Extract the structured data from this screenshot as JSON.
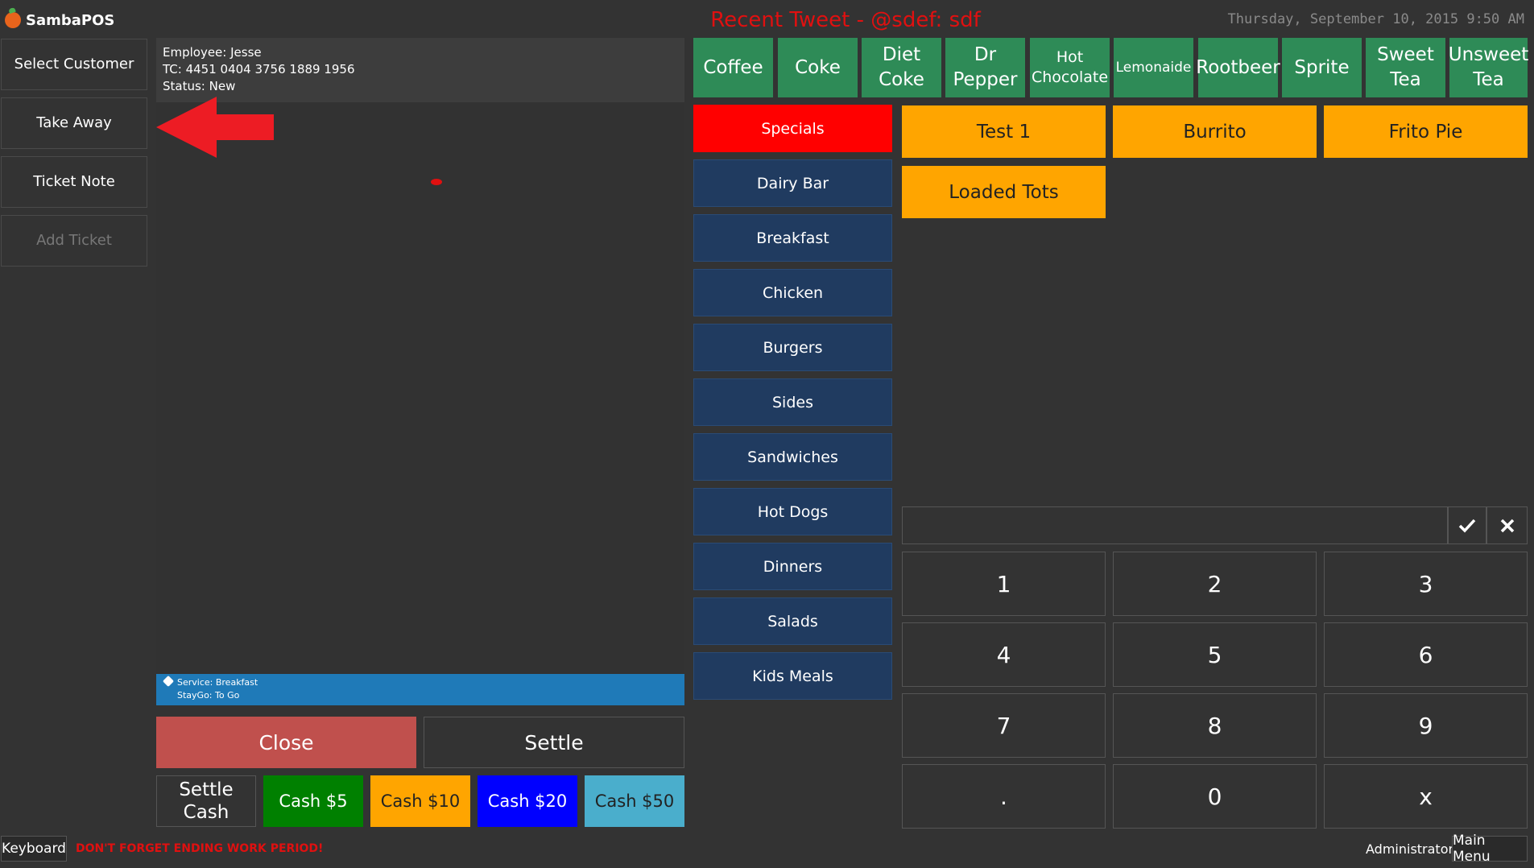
{
  "app": {
    "name": "SambaPOS",
    "tweet": "Recent Tweet - @sdef: sdf",
    "datetime": "Thursday, September 10, 2015 9:50 AM"
  },
  "left_buttons": [
    {
      "label": "Select Customer"
    },
    {
      "label": "Take Away"
    },
    {
      "label": "Ticket Note"
    },
    {
      "label": "Add Ticket"
    }
  ],
  "ticket": {
    "employee": "Employee: Jesse",
    "tc": "TC: 4451 0404 3756 1889 1956",
    "status": "Status: New",
    "service": "Service: Breakfast",
    "staygo": "StayGo: To Go"
  },
  "actions": {
    "close": "Close",
    "settle": "Settle"
  },
  "cash": [
    {
      "label": "Settle Cash",
      "color": "#333333"
    },
    {
      "label": "Cash $5",
      "color": "#008000"
    },
    {
      "label": "Cash $10",
      "color": "#ffa500"
    },
    {
      "label": "Cash $20",
      "color": "#0000ff"
    },
    {
      "label": "Cash $50",
      "color": "#4aaecc"
    }
  ],
  "drinks": [
    "Coffee",
    "Coke",
    "Diet Coke",
    "Dr Pepper",
    "Hot Chocolate",
    "Lemonaide",
    "Rootbeer",
    "Sprite",
    "Sweet Tea",
    "Unsweet Tea"
  ],
  "categories": [
    "Specials",
    "Dairy Bar",
    "Breakfast",
    "Chicken",
    "Burgers",
    "Sides",
    "Sandwiches",
    "Hot Dogs",
    "Dinners",
    "Salads",
    "Kids Meals"
  ],
  "items": [
    "Test 1",
    "Burrito",
    "Frito Pie",
    "Loaded Tots"
  ],
  "numpad": [
    "1",
    "2",
    "3",
    "4",
    "5",
    "6",
    "7",
    "8",
    "9",
    ".",
    "0",
    "x"
  ],
  "footer": {
    "keyboard": "Keyboard",
    "warning": "DON'T FORGET ENDING WORK PERIOD!",
    "user": "Administrator",
    "main_menu": "Main Menu"
  },
  "colors": {
    "specials": "#ff0000",
    "category": "#203b60",
    "drink": "#2e8b57",
    "item": "#ffa500",
    "close": "#c0504d",
    "tags_bar": "#1f7ab8",
    "warning": "#e01010"
  }
}
